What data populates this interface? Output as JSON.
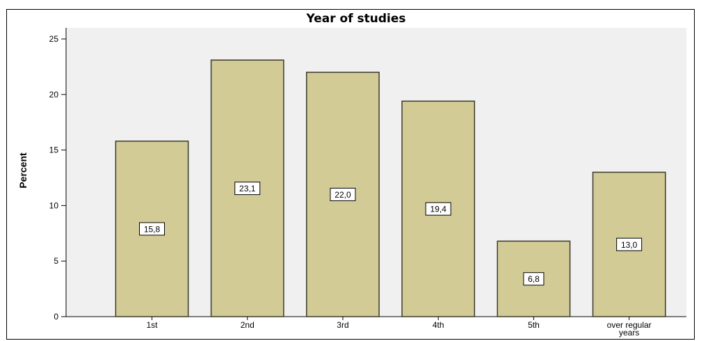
{
  "chart_data": {
    "type": "bar",
    "title": "Year of studies",
    "xlabel": "",
    "ylabel": "Percent",
    "categories": [
      "1st",
      "2nd",
      "3rd",
      "4th",
      "5th",
      "over regular years"
    ],
    "values": [
      15.8,
      23.1,
      22.0,
      19.4,
      6.8,
      13.0
    ],
    "data_labels": [
      "15,8",
      "23,1",
      "22,0",
      "19,4",
      "6,8",
      "13,0"
    ],
    "ylim": [
      0,
      26
    ],
    "yticks": [
      "0",
      "5",
      "10",
      "15",
      "20",
      "25"
    ],
    "grid": false,
    "colors": {
      "bar_fill": "#d3cb96",
      "bar_stroke": "#3a3a2a",
      "plot_bg": "#f0f0f0"
    }
  }
}
